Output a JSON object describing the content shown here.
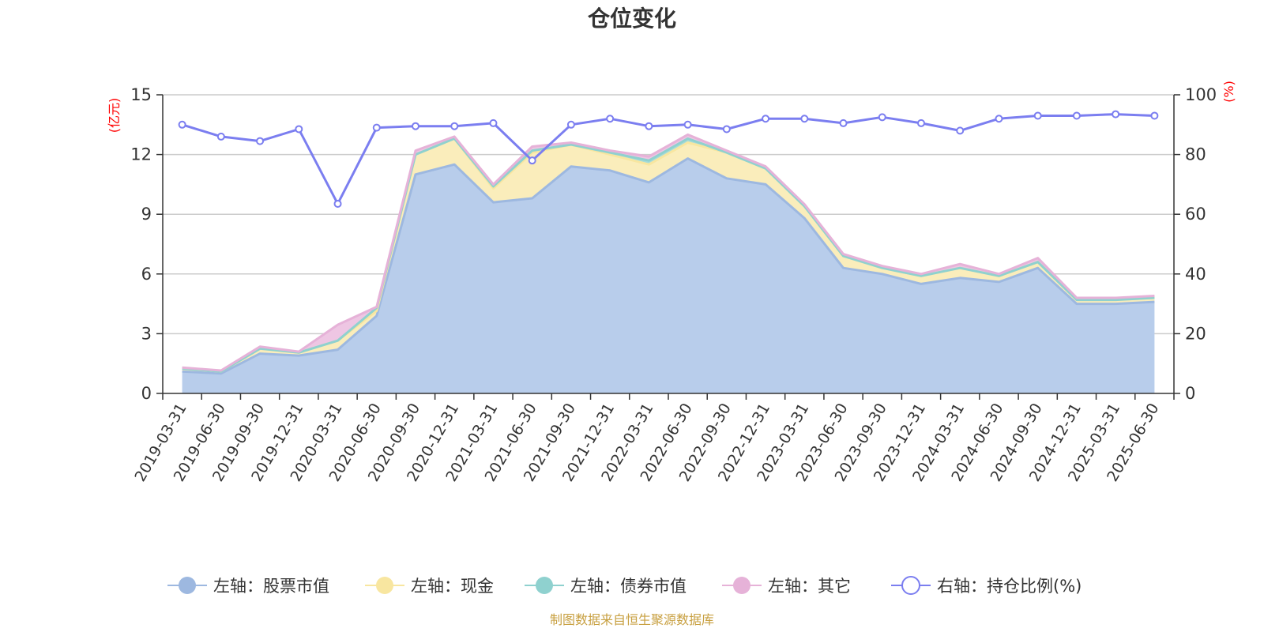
{
  "chart_data": {
    "type": "area",
    "title": "仓位变化",
    "left_axis": {
      "unit": "(亿元)",
      "ylim": [
        0,
        15
      ],
      "ticks": [
        "0",
        "3",
        "6",
        "9",
        "12",
        "15"
      ]
    },
    "right_axis": {
      "unit": "(%)",
      "ylim": [
        0,
        100
      ],
      "ticks": [
        "0",
        "20",
        "40",
        "60",
        "80",
        "100"
      ]
    },
    "categories": [
      "2019-03-31",
      "2019-06-30",
      "2019-09-30",
      "2019-12-31",
      "2020-03-31",
      "2020-06-30",
      "2020-09-30",
      "2020-12-31",
      "2021-03-31",
      "2021-06-30",
      "2021-09-30",
      "2021-12-31",
      "2022-03-31",
      "2022-06-30",
      "2022-09-30",
      "2022-12-31",
      "2023-03-31",
      "2023-06-30",
      "2023-09-30",
      "2023-12-31",
      "2024-03-31",
      "2024-06-30",
      "2024-09-30",
      "2024-12-31",
      "2025-03-31",
      "2025-06-30"
    ],
    "series": [
      {
        "name": "左轴：股票市值",
        "axis": "left",
        "stacked": true,
        "color": "#9db8e0",
        "fill": "#b8cdeb",
        "values": [
          1.1,
          1.0,
          2.0,
          1.9,
          2.2,
          3.9,
          11.0,
          11.5,
          9.6,
          9.8,
          11.4,
          11.2,
          10.6,
          11.8,
          10.8,
          10.5,
          8.8,
          6.3,
          6.0,
          5.5,
          5.8,
          5.6,
          6.3,
          4.5,
          4.5,
          4.6
        ]
      },
      {
        "name": "左轴：现金",
        "axis": "left",
        "stacked": true,
        "color": "#f8e6a0",
        "fill": "#faedbb",
        "values": [
          0.15,
          0.1,
          0.25,
          0.15,
          0.45,
          0.25,
          1.0,
          1.3,
          0.7,
          2.3,
          1.1,
          0.8,
          0.9,
          0.8,
          1.3,
          0.8,
          0.6,
          0.6,
          0.3,
          0.4,
          0.5,
          0.3,
          0.3,
          0.2,
          0.2,
          0.2
        ]
      },
      {
        "name": "左轴：债券市值",
        "axis": "left",
        "stacked": true,
        "color": "#8fd1cf",
        "fill": "#a7dcd9",
        "values": [
          0,
          0,
          0,
          0,
          0,
          0.15,
          0,
          0,
          0.1,
          0.1,
          0,
          0.1,
          0.2,
          0.2,
          0,
          0,
          0,
          0,
          0,
          0,
          0,
          0,
          0,
          0,
          0,
          0
        ]
      },
      {
        "name": "左轴：其它",
        "axis": "left",
        "stacked": true,
        "color": "#e6b2d8",
        "fill": "#eec6e3",
        "values": [
          0.05,
          0.05,
          0.1,
          0.05,
          0.8,
          0.05,
          0.2,
          0.1,
          0.1,
          0.2,
          0.1,
          0.1,
          0.2,
          0.2,
          0.1,
          0.1,
          0.1,
          0.1,
          0.1,
          0.1,
          0.2,
          0.1,
          0.2,
          0.1,
          0.1,
          0.1
        ]
      },
      {
        "name": "右轴：持仓比例(%)",
        "axis": "right",
        "stacked": false,
        "color": "#7b7ef0",
        "values": [
          90,
          86,
          84.5,
          88.5,
          63.5,
          89,
          89.5,
          89.5,
          90.5,
          78,
          90,
          92,
          89.5,
          90,
          88.5,
          92,
          92,
          90.5,
          92.5,
          90.5,
          88,
          92,
          93,
          93,
          93.5,
          93
        ]
      }
    ],
    "grid": true,
    "legend_position": "bottom"
  },
  "footer": {
    "source": "制图数据来自恒生聚源数据库"
  }
}
